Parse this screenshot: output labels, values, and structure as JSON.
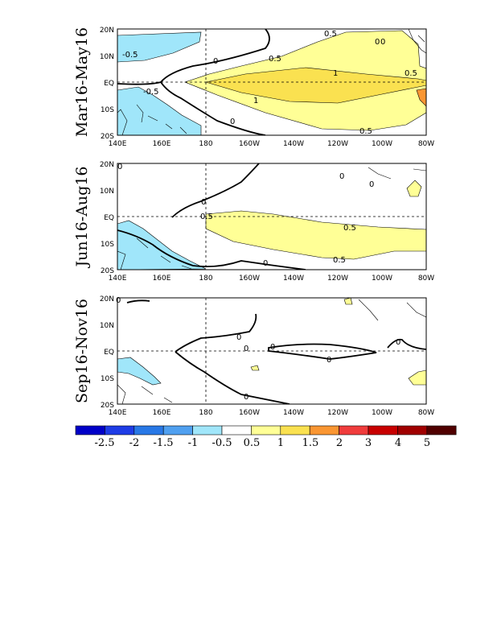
{
  "chart_data": {
    "type": "heatmap",
    "xticks": [
      "140E",
      "160E",
      "180",
      "160W",
      "140W",
      "120W",
      "100W",
      "80W"
    ],
    "yticks": [
      "20N",
      "10N",
      "EQ",
      "10S",
      "20S"
    ],
    "xlim_deg_east": [
      140,
      280
    ],
    "ylim_deg_north": [
      -20,
      20
    ],
    "panels": [
      {
        "title": "Mar16-May16",
        "contour_labels": [
          "-0.5",
          "-0.5",
          "0",
          "0",
          "0.5",
          "0.5",
          "0.5",
          "1",
          "1",
          "0",
          "0",
          "0.5"
        ]
      },
      {
        "title": "Jun16-Aug16",
        "contour_labels": [
          "0",
          "0",
          "0",
          "0.5",
          "0.5",
          "0.5",
          "0",
          "0"
        ]
      },
      {
        "title": "Sep16-Nov16",
        "contour_labels": [
          "0",
          "0",
          "0",
          "0",
          "0",
          "0",
          "0"
        ]
      }
    ],
    "colorbar": {
      "labels": [
        "-2.5",
        "-2",
        "-1.5",
        "-1",
        "-0.5",
        "0.5",
        "1",
        "1.5",
        "2",
        "3",
        "4",
        "5"
      ],
      "colors": [
        "#0000c8",
        "#1e3ce6",
        "#2878e6",
        "#50a0f0",
        "#a0e6fa",
        "#ffffff",
        "#ffff96",
        "#fae150",
        "#fa9632",
        "#f03c3c",
        "#c80000",
        "#a00000",
        "#500000"
      ]
    }
  }
}
